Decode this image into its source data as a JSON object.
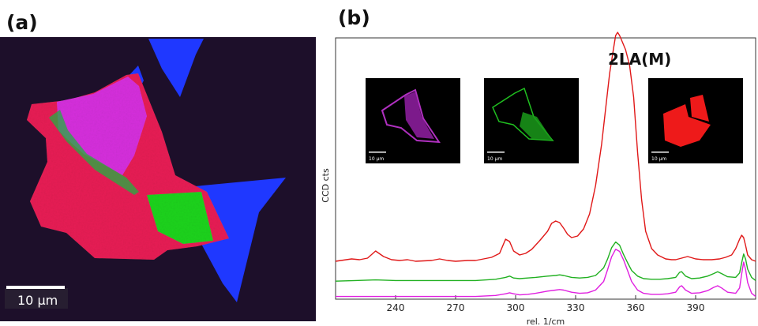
{
  "figure": {
    "panel_a_label": "(a)",
    "panel_b_label": "(b)"
  },
  "panel_a": {
    "scale_bar_label": "10 μm",
    "colors": {
      "background": "#1d0f2a",
      "blue_flakes": "#1f38ff",
      "red_region": "#e81c55",
      "magenta_region": "#d630dd",
      "green_region": "#1fd41f"
    }
  },
  "panel_b": {
    "peak_label": "2LA(M)",
    "inset_scale_labels": [
      "10 μm",
      "10 μm",
      "10 μm"
    ],
    "inset_colors": [
      "#b030c0",
      "#20c020",
      "#ee1a1a"
    ]
  },
  "chart_data": {
    "type": "line",
    "xlabel": "rel. 1/cm",
    "ylabel": "CCD cts",
    "xlim": [
      210,
      420
    ],
    "ticks": [
      240,
      270,
      300,
      330,
      360,
      390
    ],
    "series": [
      {
        "color": "#e01818",
        "x": [
          210,
          218,
          222,
          226,
          230,
          234,
          238,
          242,
          246,
          250,
          258,
          262,
          266,
          270,
          276,
          280,
          284,
          288,
          292,
          295,
          297,
          299,
          302,
          305,
          308,
          312,
          316,
          318,
          320,
          322,
          324,
          326,
          328,
          331,
          334,
          337,
          340,
          343,
          345,
          347,
          349,
          350,
          351,
          352,
          353,
          355,
          357,
          359,
          361,
          363,
          365,
          368,
          371,
          375,
          378,
          380,
          383,
          386,
          390,
          394,
          398,
          402,
          405,
          408,
          410,
          412,
          413,
          414,
          415,
          416,
          418,
          420
        ],
        "y": [
          0.02,
          0.05,
          0.04,
          0.06,
          0.15,
          0.08,
          0.04,
          0.03,
          0.04,
          0.02,
          0.03,
          0.05,
          0.03,
          0.02,
          0.03,
          0.03,
          0.05,
          0.07,
          0.12,
          0.3,
          0.27,
          0.15,
          0.1,
          0.12,
          0.17,
          0.28,
          0.4,
          0.5,
          0.53,
          0.51,
          0.44,
          0.36,
          0.32,
          0.34,
          0.43,
          0.62,
          0.98,
          1.5,
          1.95,
          2.4,
          2.72,
          2.88,
          2.92,
          2.88,
          2.82,
          2.7,
          2.5,
          2.1,
          1.4,
          0.8,
          0.4,
          0.18,
          0.1,
          0.05,
          0.04,
          0.04,
          0.06,
          0.08,
          0.05,
          0.04,
          0.04,
          0.05,
          0.07,
          0.1,
          0.18,
          0.3,
          0.35,
          0.32,
          0.22,
          0.1,
          0.04,
          0.02
        ]
      },
      {
        "color": "#20b020",
        "x": [
          210,
          220,
          230,
          240,
          250,
          260,
          270,
          280,
          290,
          295,
          297,
          299,
          302,
          306,
          310,
          316,
          320,
          322,
          324,
          328,
          332,
          336,
          340,
          344,
          346,
          348,
          350,
          352,
          354,
          356,
          358,
          361,
          364,
          368,
          372,
          376,
          380,
          382,
          383,
          385,
          388,
          392,
          396,
          399,
          401,
          403,
          406,
          410,
          412,
          413,
          414,
          415,
          416,
          418,
          420
        ],
        "y": [
          0.01,
          0.02,
          0.03,
          0.02,
          0.02,
          0.02,
          0.02,
          0.02,
          0.04,
          0.07,
          0.09,
          0.06,
          0.05,
          0.06,
          0.07,
          0.09,
          0.1,
          0.11,
          0.1,
          0.07,
          0.06,
          0.07,
          0.1,
          0.22,
          0.36,
          0.54,
          0.63,
          0.58,
          0.43,
          0.3,
          0.18,
          0.09,
          0.05,
          0.04,
          0.04,
          0.05,
          0.07,
          0.15,
          0.16,
          0.09,
          0.05,
          0.06,
          0.09,
          0.13,
          0.16,
          0.13,
          0.08,
          0.07,
          0.14,
          0.3,
          0.44,
          0.36,
          0.2,
          0.07,
          0.02
        ]
      },
      {
        "color": "#e020e0",
        "x": [
          210,
          220,
          230,
          240,
          250,
          260,
          270,
          280,
          290,
          295,
          297,
          299,
          302,
          306,
          310,
          316,
          320,
          322,
          324,
          328,
          332,
          336,
          340,
          344,
          346,
          348,
          350,
          352,
          354,
          356,
          358,
          361,
          364,
          368,
          372,
          376,
          380,
          382,
          383,
          385,
          388,
          392,
          396,
          399,
          401,
          403,
          406,
          410,
          412,
          413,
          414,
          415,
          416,
          418,
          420
        ],
        "y": [
          0.02,
          0.02,
          0.02,
          0.02,
          0.02,
          0.02,
          0.02,
          0.02,
          0.04,
          0.07,
          0.09,
          0.07,
          0.05,
          0.06,
          0.08,
          0.12,
          0.14,
          0.15,
          0.14,
          0.1,
          0.08,
          0.09,
          0.14,
          0.3,
          0.52,
          0.76,
          0.9,
          0.86,
          0.7,
          0.5,
          0.3,
          0.14,
          0.08,
          0.06,
          0.06,
          0.07,
          0.1,
          0.2,
          0.22,
          0.14,
          0.08,
          0.09,
          0.13,
          0.19,
          0.22,
          0.18,
          0.1,
          0.08,
          0.18,
          0.44,
          0.66,
          0.52,
          0.28,
          0.08,
          0.02
        ]
      }
    ]
  }
}
